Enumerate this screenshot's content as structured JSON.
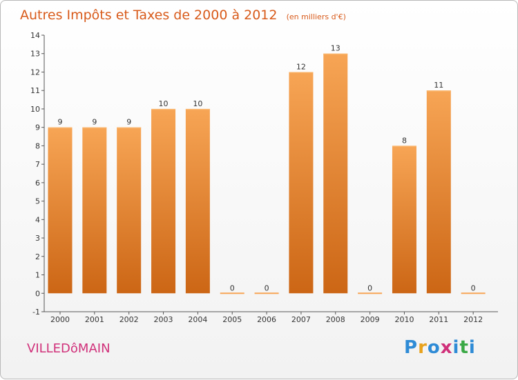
{
  "page": {
    "commune": "VILLEDôMAIN",
    "logo": "Proxiti"
  },
  "colors": {
    "bar_top": "#f7a555",
    "bar_bottom": "#cc6615",
    "title": "#d85a1a",
    "commune": "#d0307a",
    "logo": [
      "#2e8bd6",
      "#e8a21c",
      "#2e8bd6",
      "#d0307a",
      "#2e8bd6",
      "#3aa845",
      "#2e8bd6"
    ]
  },
  "chart_data": {
    "type": "bar",
    "title": "Autres Impôts et Taxes de 2000 à 2012",
    "subtitle": "(en milliers d'€)",
    "categories": [
      "2000",
      "2001",
      "2002",
      "2003",
      "2004",
      "2005",
      "2006",
      "2007",
      "2008",
      "2009",
      "2010",
      "2011",
      "2012"
    ],
    "values": [
      9,
      9,
      9,
      10,
      10,
      0,
      0,
      12,
      13,
      0,
      8,
      11,
      0
    ],
    "data_labels": [
      "9",
      "9",
      "9",
      "10",
      "10",
      "0",
      "0",
      "12",
      "13",
      "0",
      "8",
      "11",
      "0"
    ],
    "yticks": [
      "-1",
      "0",
      "1",
      "2",
      "3",
      "4",
      "5",
      "6",
      "7",
      "8",
      "9",
      "10",
      "11",
      "12",
      "13",
      "14"
    ],
    "ylim": [
      -1,
      14
    ],
    "grid": false,
    "legend": false
  }
}
